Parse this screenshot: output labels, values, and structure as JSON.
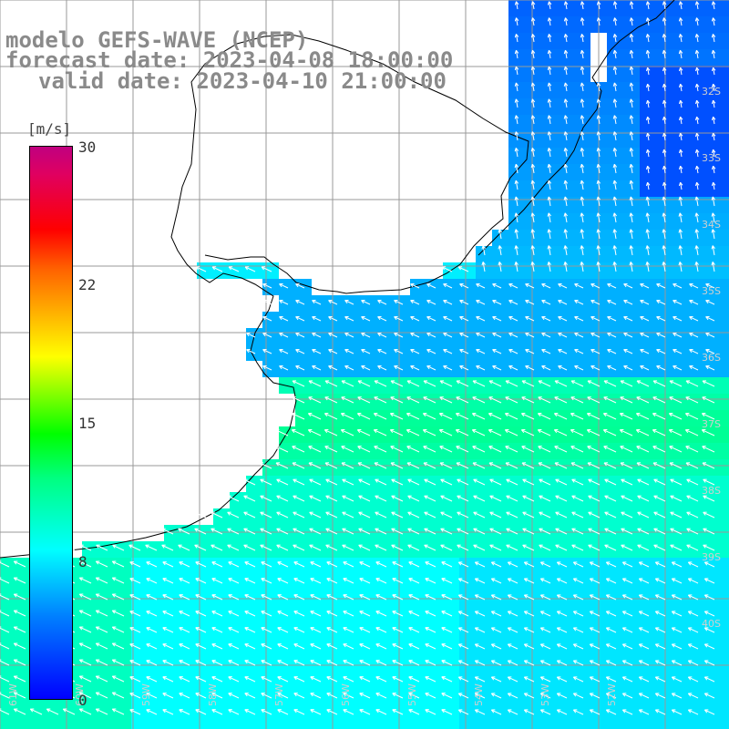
{
  "header": {
    "line1": "modelo GEFS-WAVE (NCEP)",
    "line2": "forecast date: 2023-04-08 18:00:00",
    "line3": "valid date: 2023-04-10 21:00:00"
  },
  "colorbar": {
    "unit": "[m/s]",
    "ticks": [
      "30",
      "22",
      "15",
      "8",
      "0"
    ],
    "min": 0,
    "max": 30,
    "colors": [
      "#0000ff",
      "#0080ff",
      "#00ffff",
      "#00ff00",
      "#ffff00",
      "#ff0000",
      "#c00080"
    ]
  },
  "map": {
    "land_color": "#ffffff",
    "grid_color": "#999999",
    "coast_color": "#000000",
    "arrow_color": "#ffffff",
    "lat_labels": [
      "32S",
      "33S",
      "34S",
      "35S",
      "36S",
      "37S",
      "38S",
      "39S",
      "40S"
    ],
    "lon_labels": [
      "61W",
      "60W",
      "59W",
      "58W",
      "57W",
      "56W",
      "55W",
      "54W",
      "53W",
      "52W"
    ],
    "wind_direction": "toward north-west"
  }
}
